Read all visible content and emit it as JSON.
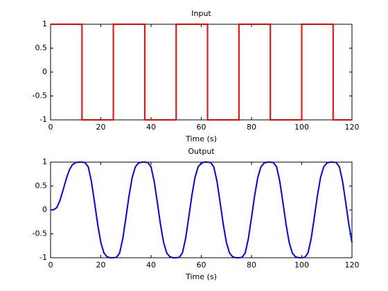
{
  "chart_data": [
    {
      "type": "line",
      "title": "Input",
      "x_label": "Time (s)",
      "color": "#ff0000",
      "x": [
        0,
        12.5,
        12.5,
        25,
        25,
        37.5,
        37.5,
        50,
        50,
        62.5,
        62.5,
        75,
        75,
        87.5,
        87.5,
        100,
        100,
        112.5,
        112.5,
        120
      ],
      "values": [
        1,
        1,
        -1,
        -1,
        1,
        1,
        -1,
        -1,
        1,
        1,
        -1,
        -1,
        1,
        1,
        -1,
        -1,
        1,
        1,
        -1,
        -1
      ],
      "xlim": [
        0,
        120
      ],
      "xticks": [
        0,
        20,
        40,
        60,
        80,
        100,
        120
      ],
      "ylim": [
        -1,
        1
      ],
      "yticks": [
        -1,
        -0.5,
        0,
        0.5,
        1
      ]
    },
    {
      "type": "line",
      "title": "Output",
      "x_label": "Time (s)",
      "color": "#0000ff",
      "x": [
        0,
        1.25,
        2.5,
        3.75,
        5,
        6.25,
        7.5,
        8.75,
        10,
        11.25,
        12.5,
        13.75,
        15,
        16.25,
        17.5,
        18.75,
        20,
        21.25,
        22.5,
        23.75,
        25,
        26.25,
        27.5,
        28.75,
        30,
        31.25,
        32.5,
        33.75,
        35,
        36.25,
        37.5,
        38.75,
        40,
        41.25,
        42.5,
        43.75,
        45,
        46.25,
        47.5,
        48.75,
        50,
        51.25,
        52.5,
        53.75,
        55,
        56.25,
        57.5,
        58.75,
        60,
        61.25,
        62.5,
        63.75,
        65,
        66.25,
        67.5,
        68.75,
        70,
        71.25,
        72.5,
        73.75,
        75,
        76.25,
        77.5,
        78.75,
        80,
        81.25,
        82.5,
        83.75,
        85,
        86.25,
        87.5,
        88.75,
        90,
        91.25,
        92.5,
        93.75,
        95,
        96.25,
        97.5,
        98.75,
        100,
        101.25,
        102.5,
        103.75,
        105,
        106.25,
        107.5,
        108.75,
        110,
        111.25,
        112.5,
        113.75,
        115,
        116.25,
        117.5,
        118.75,
        120
      ],
      "values": [
        0,
        0.005,
        0.05,
        0.2,
        0.42,
        0.65,
        0.84,
        0.95,
        0.99,
        1,
        1,
        0.99,
        0.9,
        0.6,
        0.16,
        -0.3,
        -0.68,
        -0.9,
        -0.98,
        -1,
        -1,
        -0.99,
        -0.9,
        -0.6,
        -0.16,
        0.3,
        0.68,
        0.9,
        0.98,
        1,
        1,
        0.99,
        0.9,
        0.6,
        0.16,
        -0.3,
        -0.68,
        -0.9,
        -0.98,
        -1,
        -1,
        -0.99,
        -0.9,
        -0.6,
        -0.16,
        0.3,
        0.68,
        0.9,
        0.98,
        1,
        1,
        0.99,
        0.9,
        0.6,
        0.16,
        -0.3,
        -0.68,
        -0.9,
        -0.98,
        -1,
        -1,
        -0.99,
        -0.9,
        -0.6,
        -0.16,
        0.3,
        0.68,
        0.9,
        0.98,
        1,
        1,
        0.99,
        0.9,
        0.6,
        0.16,
        -0.3,
        -0.68,
        -0.9,
        -0.98,
        -1,
        -1,
        -0.99,
        -0.9,
        -0.6,
        -0.16,
        0.3,
        0.68,
        0.9,
        0.98,
        1,
        1,
        0.99,
        0.9,
        0.6,
        0.16,
        -0.3,
        -0.68
      ],
      "xlim": [
        0,
        120
      ],
      "xticks": [
        0,
        20,
        40,
        60,
        80,
        100,
        120
      ],
      "ylim": [
        -1,
        1
      ],
      "yticks": [
        -1,
        -0.5,
        0,
        0.5,
        1
      ]
    }
  ]
}
